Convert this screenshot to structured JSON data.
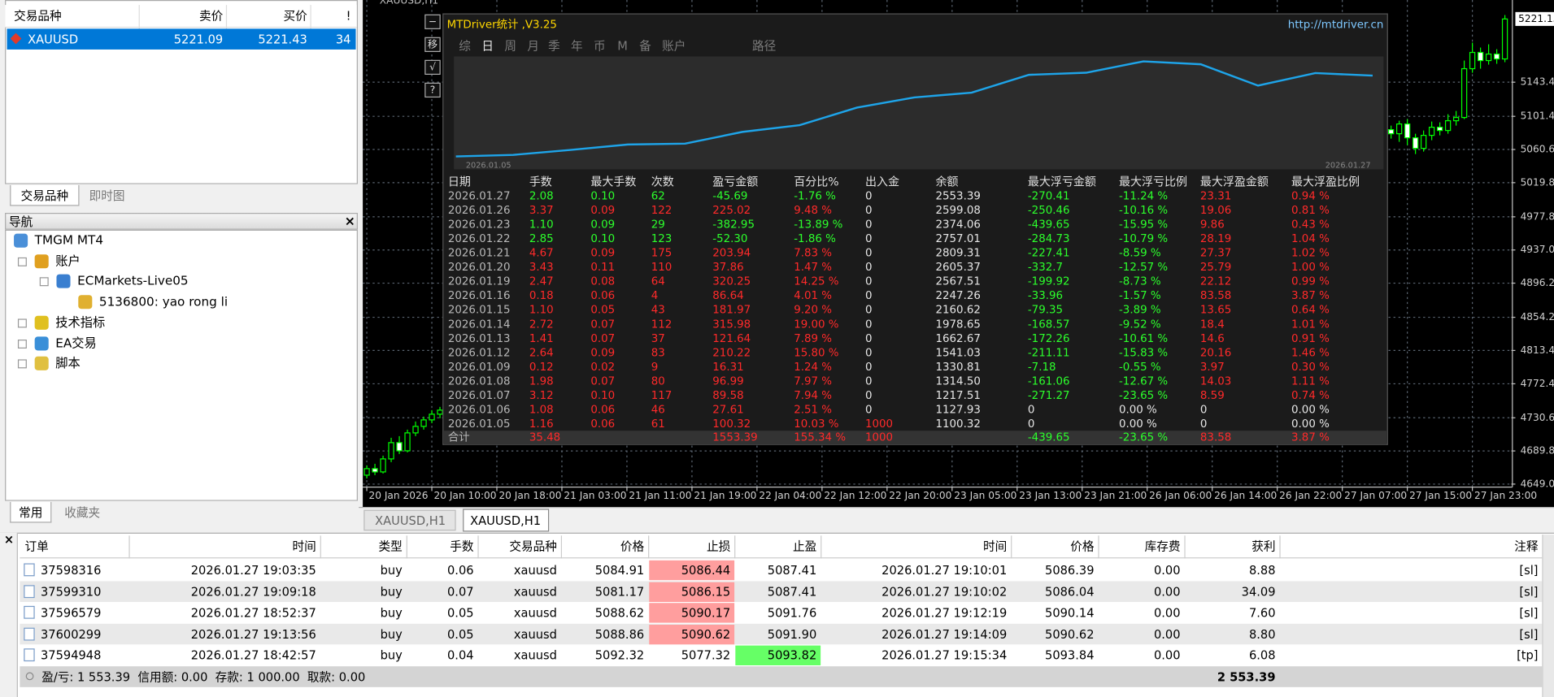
{
  "market_watch": {
    "headers": [
      "交易品种",
      "卖价",
      "买价",
      "!"
    ],
    "rows": [
      [
        "XAUUSD",
        "5221.09",
        "5221.43",
        "34"
      ]
    ],
    "tabs": [
      "交易品种",
      "即时图"
    ]
  },
  "navigator": {
    "title": "导航",
    "close": "×",
    "items": [
      "TMGM MT4",
      "账户",
      "ECMarkets-Live05",
      "5136800: yao rong li",
      "技术指标",
      "EA交易",
      "脚本"
    ],
    "tabs": [
      "常用",
      "收藏夹"
    ]
  },
  "chart_data": {
    "type": "candlestick",
    "title": "XAUUSD,H1",
    "x": [
      0,
      1,
      2,
      3,
      4,
      5,
      6,
      7,
      8,
      9,
      126,
      127,
      128,
      129,
      130,
      131,
      132,
      133,
      134,
      135,
      136,
      137,
      138,
      139,
      140
    ],
    "open": [
      4660,
      4668,
      4664,
      4680,
      4700,
      4690,
      4712,
      4720,
      4728,
      4735,
      5085,
      5080,
      5092,
      5075,
      5062,
      5078,
      5088,
      5084,
      5096,
      5100,
      5160,
      5180,
      5170,
      5178,
      5172
    ],
    "high": [
      4672,
      4674,
      4684,
      4706,
      4708,
      4716,
      4726,
      4732,
      4740,
      4744,
      5090,
      5096,
      5098,
      5080,
      5084,
      5095,
      5094,
      5104,
      5108,
      5170,
      5192,
      5186,
      5190,
      5184,
      5226
    ],
    "low": [
      4656,
      4660,
      4662,
      4676,
      4686,
      4688,
      4708,
      4716,
      4724,
      4730,
      5074,
      5070,
      5066,
      5055,
      5058,
      5072,
      5078,
      5080,
      5090,
      5098,
      5155,
      5160,
      5165,
      5166,
      5168
    ],
    "close": [
      4668,
      4664,
      4680,
      4700,
      4690,
      4712,
      4720,
      4728,
      4735,
      4740,
      5080,
      5092,
      5075,
      5062,
      5078,
      5088,
      5084,
      5096,
      5100,
      5160,
      5180,
      5170,
      5178,
      5172,
      5221.15
    ],
    "xlim": [
      -0.5,
      140.8
    ],
    "ylim": [
      4645.3,
      5244.5
    ],
    "yticks": [
      {
        "value": 5143.4,
        "label": "5143.40"
      },
      {
        "value": 5101.4,
        "label": "5101.40"
      },
      {
        "value": 5060.6,
        "label": "5060.60"
      },
      {
        "value": 5019.8,
        "label": "5019.80"
      },
      {
        "value": 4977.8,
        "label": "4977.80"
      },
      {
        "value": 4937,
        "label": "4937.00"
      },
      {
        "value": 4896.2,
        "label": "4896.20"
      },
      {
        "value": 4854.2,
        "label": "4854.20"
      },
      {
        "value": 4813.4,
        "label": "4813.40"
      },
      {
        "value": 4772.4,
        "label": "4772.40"
      },
      {
        "value": 4730.6,
        "label": "4730.60"
      },
      {
        "value": 4689.8,
        "label": "4689.80"
      },
      {
        "value": 4649,
        "label": "4649.00"
      }
    ],
    "current_price": {
      "value": 5221.15,
      "label": "5221.15"
    },
    "time_labels": [
      "20 Jan 2026",
      "20 Jan 10:00",
      "20 Jan 18:00",
      "21 Jan 03:00",
      "21 Jan 11:00",
      "21 Jan 19:00",
      "22 Jan 04:00",
      "22 Jan 12:00",
      "22 Jan 20:00",
      "23 Jan 05:00",
      "23 Jan 13:00",
      "23 Jan 21:00",
      "26 Jan 06:00",
      "26 Jan 14:00",
      "26 Jan 22:00",
      "27 Jan 07:00",
      "27 Jan 15:00",
      "27 Jan 23:00"
    ],
    "candle_color": "#00ff00",
    "grid": true
  },
  "stats": {
    "title": "MTDriver统计 ,V3.25",
    "url": "http://mtdriver.cn",
    "buttons": [
      "−",
      "移",
      "√",
      "?"
    ],
    "tabs": [
      "综",
      "日",
      "周",
      "月",
      "季",
      "年",
      "币",
      "M",
      "备",
      "账户",
      "路径"
    ],
    "graph_dates": [
      "2026.01.05",
      "2026.01.27"
    ],
    "headers": [
      "日期",
      "手数",
      "最大手数",
      "次数",
      "盈亏金额",
      "百分比%",
      "出入金",
      "余额",
      "最大浮亏金额",
      "最大浮亏比例",
      "最大浮盈金额",
      "最大浮盈比例"
    ],
    "rows": [
      [
        "2026.01.27",
        "2.08",
        "0.10",
        "62",
        "-45.69",
        "-1.76 %",
        "0",
        "2553.39",
        "-270.41",
        "-11.24 %",
        "23.31",
        "0.94 %"
      ],
      [
        "2026.01.26",
        "3.37",
        "0.09",
        "122",
        "225.02",
        "9.48 %",
        "0",
        "2599.08",
        "-250.46",
        "-10.16 %",
        "19.06",
        "0.81 %"
      ],
      [
        "2026.01.23",
        "1.10",
        "0.09",
        "29",
        "-382.95",
        "-13.89 %",
        "0",
        "2374.06",
        "-439.65",
        "-15.95 %",
        "9.86",
        "0.43 %"
      ],
      [
        "2026.01.22",
        "2.85",
        "0.10",
        "123",
        "-52.30",
        "-1.86 %",
        "0",
        "2757.01",
        "-284.73",
        "-10.79 %",
        "28.19",
        "1.04 %"
      ],
      [
        "2026.01.21",
        "4.67",
        "0.09",
        "175",
        "203.94",
        "7.83 %",
        "0",
        "2809.31",
        "-227.41",
        "-8.59 %",
        "27.37",
        "1.02 %"
      ],
      [
        "2026.01.20",
        "3.43",
        "0.11",
        "110",
        "37.86",
        "1.47 %",
        "0",
        "2605.37",
        "-332.7",
        "-12.57 %",
        "25.79",
        "1.00 %"
      ],
      [
        "2026.01.19",
        "2.47",
        "0.08",
        "64",
        "320.25",
        "14.25 %",
        "0",
        "2567.51",
        "-199.92",
        "-8.73 %",
        "22.12",
        "0.99 %"
      ],
      [
        "2026.01.16",
        "0.18",
        "0.06",
        "4",
        "86.64",
        "4.01 %",
        "0",
        "2247.26",
        "-33.96",
        "-1.57 %",
        "83.58",
        "3.87 %"
      ],
      [
        "2026.01.15",
        "1.10",
        "0.05",
        "43",
        "181.97",
        "9.20 %",
        "0",
        "2160.62",
        "-79.35",
        "-3.89 %",
        "13.65",
        "0.64 %"
      ],
      [
        "2026.01.14",
        "2.72",
        "0.07",
        "112",
        "315.98",
        "19.00 %",
        "0",
        "1978.65",
        "-168.57",
        "-9.52 %",
        "18.4",
        "1.01 %"
      ],
      [
        "2026.01.13",
        "1.41",
        "0.07",
        "37",
        "121.64",
        "7.89 %",
        "0",
        "1662.67",
        "-172.26",
        "-10.61 %",
        "14.6",
        "0.91 %"
      ],
      [
        "2026.01.12",
        "2.64",
        "0.09",
        "83",
        "210.22",
        "15.80 %",
        "0",
        "1541.03",
        "-211.11",
        "-15.83 %",
        "20.16",
        "1.46 %"
      ],
      [
        "2026.01.09",
        "0.12",
        "0.02",
        "9",
        "16.31",
        "1.24 %",
        "0",
        "1330.81",
        "-7.18",
        "-0.55 %",
        "3.97",
        "0.30 %"
      ],
      [
        "2026.01.08",
        "1.98",
        "0.07",
        "80",
        "96.99",
        "7.97 %",
        "0",
        "1314.50",
        "-161.06",
        "-12.67 %",
        "14.03",
        "1.11 %"
      ],
      [
        "2026.01.07",
        "3.12",
        "0.10",
        "117",
        "89.58",
        "7.94 %",
        "0",
        "1217.51",
        "-271.27",
        "-23.65 %",
        "8.59",
        "0.74 %"
      ],
      [
        "2026.01.06",
        "1.08",
        "0.06",
        "46",
        "27.61",
        "2.51 %",
        "0",
        "1127.93",
        "0",
        "0.00 %",
        "0",
        "0.00 %"
      ],
      [
        "2026.01.05",
        "1.16",
        "0.06",
        "61",
        "100.32",
        "10.03 %",
        "1000",
        "1100.32",
        "0",
        "0.00 %",
        "0",
        "0.00 %"
      ]
    ],
    "total": {
      "label": "合计",
      "lots": "35.48",
      "profit": "1553.39",
      "percent": "155.34 %",
      "deposit": "1000",
      "max_float_loss": "-439.65",
      "max_float_loss_pct": "-23.65 %",
      "max_float_profit": "83.58",
      "max_float_profit_pct": "3.87 %"
    },
    "line_color": "#1ea4e9"
  },
  "terminal": {
    "chart_tabs": [
      "XAUUSD,H1",
      "XAUUSD,H1"
    ],
    "close": "×",
    "headers": [
      "订单",
      "时间",
      "类型",
      "手数",
      "交易品种",
      "价格",
      "止损",
      "止盈",
      "时间",
      "价格",
      "库存费",
      "获利",
      "注释"
    ],
    "rows": [
      [
        "37598316",
        "2026.01.27 19:03:35",
        "buy",
        "0.06",
        "xauusd",
        "5084.91",
        "5086.44",
        "5087.41",
        "2026.01.27 19:10:01",
        "5086.39",
        "0.00",
        "8.88",
        "[sl]"
      ],
      [
        "37599310",
        "2026.01.27 19:09:18",
        "buy",
        "0.07",
        "xauusd",
        "5081.17",
        "5086.15",
        "5087.41",
        "2026.01.27 19:10:02",
        "5086.04",
        "0.00",
        "34.09",
        "[sl]"
      ],
      [
        "37596579",
        "2026.01.27 18:52:37",
        "buy",
        "0.05",
        "xauusd",
        "5088.62",
        "5090.17",
        "5091.76",
        "2026.01.27 19:12:19",
        "5090.14",
        "0.00",
        "7.60",
        "[sl]"
      ],
      [
        "37600299",
        "2026.01.27 19:13:56",
        "buy",
        "0.05",
        "xauusd",
        "5088.86",
        "5090.62",
        "5091.90",
        "2026.01.27 19:14:09",
        "5090.62",
        "0.00",
        "8.80",
        "[sl]"
      ],
      [
        "37594948",
        "2026.01.27 18:42:57",
        "buy",
        "0.04",
        "xauusd",
        "5092.32",
        "5077.32",
        "5093.82",
        "2026.01.27 19:15:34",
        "5093.84",
        "0.00",
        "6.08",
        "[tp]"
      ]
    ],
    "hits": [
      "sl",
      "sl",
      "sl",
      "sl",
      "tp"
    ],
    "hit_colors": {
      "sl": "#ff9e9e",
      "tp": "#66ff66"
    },
    "summary": "盈/亏: 1 553.39  信用额: 0.00  存款: 1 000.00  取款: 0.00",
    "summary_total": "2 553.39"
  }
}
